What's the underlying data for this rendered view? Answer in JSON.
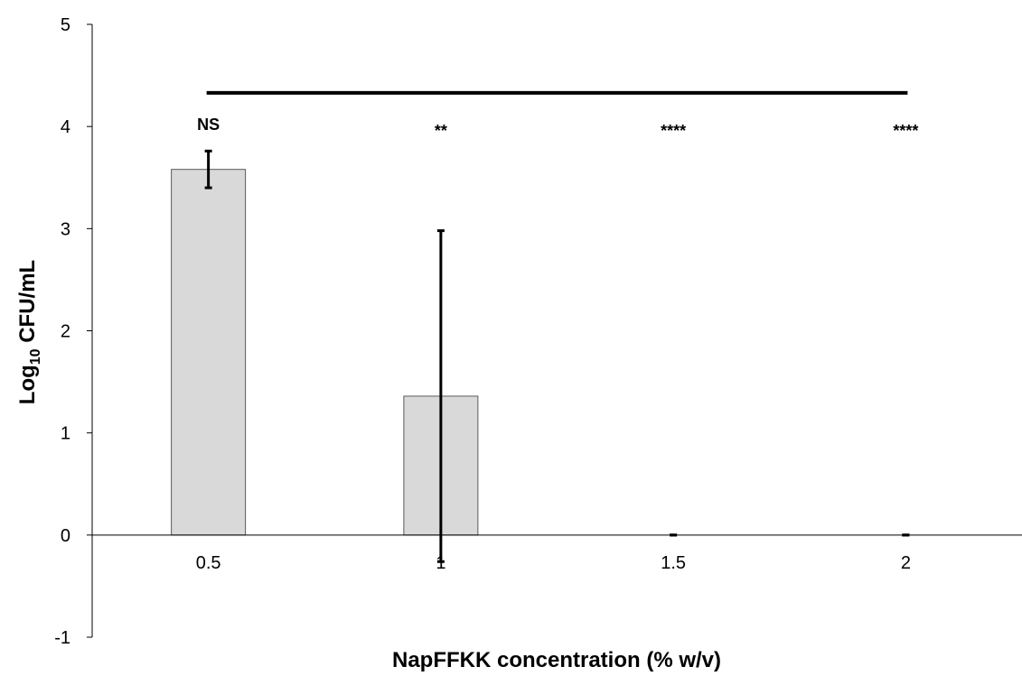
{
  "chart_data": {
    "type": "bar",
    "categories": [
      "0.5",
      "1",
      "1.5",
      "2"
    ],
    "values": [
      3.58,
      1.36,
      0,
      0
    ],
    "error_plus": [
      0.18,
      1.62,
      0,
      0
    ],
    "error_minus": [
      0.18,
      1.62,
      0,
      0
    ],
    "significance": [
      "NS",
      "**",
      "****",
      "****"
    ],
    "xlabel": "NapFFKK concentration (% w/v)",
    "ylabel": {
      "prefix": "Log",
      "subscript": "10",
      "suffix": " CFU/mL"
    },
    "ylim": [
      -1,
      5
    ],
    "yticks": [
      "-1",
      "0",
      "1",
      "2",
      "3",
      "4",
      "5"
    ],
    "bracket_y": 4.33,
    "bar_color": "#d9d9d9",
    "bar_edge_color": "#595959",
    "grid": false,
    "legend": "none"
  }
}
